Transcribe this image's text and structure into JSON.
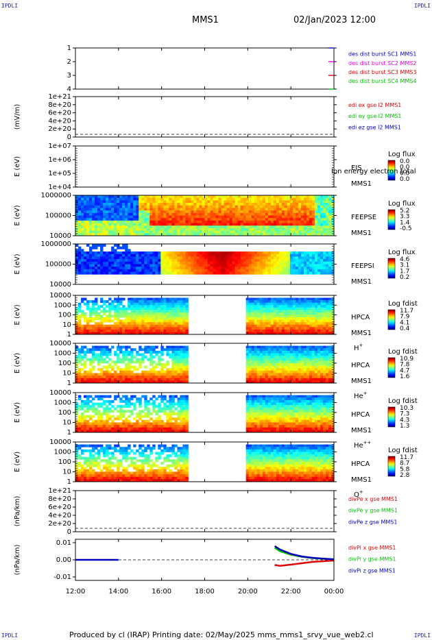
{
  "corner_label": "IPDLI",
  "header": {
    "spacecraft": "MMS1",
    "datetime": "02/Jan/2023 12:00"
  },
  "footer": "Produced by cl (IRAP)   Printing date: 02/May/2025   mms_mms1_srvy_vue_web2.cl",
  "x_ticks": [
    "12:00",
    "14:00",
    "16:00",
    "18:00",
    "20:00",
    "22:00",
    "00:00"
  ],
  "colors": {
    "red": "#e00000",
    "green": "#00c000",
    "blue": "#0000c0",
    "magenta": "#e000e0"
  },
  "chart_data": [
    {
      "type": "line",
      "title": "",
      "ylabel": "",
      "yticks": [
        "1",
        "2",
        "3",
        "4"
      ],
      "ylim": [
        1,
        4
      ],
      "legend": [
        {
          "text": "des dist burst SC1 MMS1",
          "color": "#0000c0"
        },
        {
          "text": "des dist burst SC2 MMS2",
          "color": "#e000e0"
        },
        {
          "text": "des dist burst SC3 MMS3",
          "color": "#e00000"
        },
        {
          "text": "des dist burst SC4 MMS4",
          "color": "#00c000"
        }
      ]
    },
    {
      "type": "line",
      "ylabel": "(mV/m)",
      "yticks": [
        "1e+21",
        "8e+20",
        "6e+20",
        "4e+20",
        "2e+20",
        "0"
      ],
      "legend": [
        {
          "text": "edi ex gse l2 MMS1",
          "color": "#e00000"
        },
        {
          "text": "edi ey gse l2 MMS1",
          "color": "#00c000"
        },
        {
          "text": "edi ez gse l2 MMS1",
          "color": "#0000c0"
        }
      ]
    },
    {
      "type": "heatmap",
      "ylabel": "E (eV)",
      "yscale": "log",
      "yticks": [
        "1e+07",
        "1e+06",
        "1e+05",
        "1e+04"
      ],
      "instrument": "EIS",
      "spacecraft": "MMS1",
      "overlay": "Ion energy electron total",
      "colorbar_title": "Log flux",
      "colorbar_ticks": [
        "0.0",
        "0.0",
        "0.0",
        "0.0"
      ]
    },
    {
      "type": "heatmap",
      "ylabel": "E (eV)",
      "yscale": "log",
      "yticks": [
        "1000000",
        "100000",
        "10000"
      ],
      "instrument": "FEEPSE",
      "spacecraft": "MMS1",
      "colorbar_title": "Log flux",
      "colorbar_ticks": [
        "5.2",
        "3.3",
        "1.4",
        "-0.5"
      ]
    },
    {
      "type": "heatmap",
      "ylabel": "E (eV)",
      "yscale": "log",
      "yticks": [
        "1000000",
        "100000",
        "10000"
      ],
      "instrument": "FEEPSI",
      "spacecraft": "MMS1",
      "colorbar_title": "Log flux",
      "colorbar_ticks": [
        "4.6",
        "3.1",
        "1.7",
        "0.2"
      ]
    },
    {
      "type": "heatmap",
      "ylabel": "E (eV)",
      "yscale": "log",
      "yticks": [
        "10000",
        "1000",
        "100",
        "10",
        "1"
      ],
      "instrument": "HPCA",
      "spacecraft": "MMS1",
      "species": "H",
      "charge": "+",
      "colorbar_title": "Log fdist",
      "colorbar_ticks": [
        "11.7",
        "7.9",
        "4.1",
        "0.4"
      ]
    },
    {
      "type": "heatmap",
      "ylabel": "E (eV)",
      "yscale": "log",
      "yticks": [
        "10000",
        "1000",
        "100",
        "10",
        "1"
      ],
      "instrument": "HPCA",
      "spacecraft": "MMS1",
      "species": "He",
      "charge": "+",
      "colorbar_title": "Log fdist",
      "colorbar_ticks": [
        "10.9",
        "7.8",
        "4.7",
        "1.6"
      ]
    },
    {
      "type": "heatmap",
      "ylabel": "E (eV)",
      "yscale": "log",
      "yticks": [
        "10000",
        "1000",
        "100",
        "10",
        "1"
      ],
      "instrument": "HPCA",
      "spacecraft": "MMS1",
      "species": "He",
      "charge": "++",
      "colorbar_title": "Log fdist",
      "colorbar_ticks": [
        "10.3",
        "7.3",
        "4.3",
        "1.3"
      ]
    },
    {
      "type": "heatmap",
      "ylabel": "E (eV)",
      "yscale": "log",
      "yticks": [
        "10000",
        "1000",
        "100",
        "10",
        "1"
      ],
      "instrument": "HPCA",
      "spacecraft": "MMS1",
      "species": "O",
      "charge": "+",
      "colorbar_title": "Log fdist",
      "colorbar_ticks": [
        "11.7",
        "8.7",
        "5.8",
        "2.8"
      ]
    },
    {
      "type": "line",
      "ylabel": "(nPa/km)",
      "yticks": [
        "1e+21",
        "8e+20",
        "6e+20",
        "4e+20",
        "2e+20",
        "0"
      ],
      "legend": [
        {
          "text": "divPe x gse MMS1",
          "color": "#e00000"
        },
        {
          "text": "divPe y gse MMS1",
          "color": "#00c000"
        },
        {
          "text": "divPe z gse MMS1",
          "color": "#0000c0"
        }
      ]
    },
    {
      "type": "line",
      "ylabel": "(nPa/km)",
      "yticks": [
        "0.01",
        "0.00",
        "-0.01"
      ],
      "ylim": [
        -0.012,
        0.012
      ],
      "legend": [
        {
          "text": "divPi x gse MMS1",
          "color": "#e00000"
        },
        {
          "text": "divPi y gse MMS1",
          "color": "#00c000"
        },
        {
          "text": "divPi z gse MMS1",
          "color": "#0000c0"
        }
      ],
      "series": [
        {
          "name": "divPi x gse MMS1",
          "x": [
            "21:15",
            "21:30",
            "22:00",
            "22:30",
            "23:00",
            "23:30",
            "00:00"
          ],
          "values": [
            -0.003,
            -0.0035,
            -0.0028,
            -0.002,
            -0.0012,
            -0.0008,
            -0.0004
          ]
        },
        {
          "name": "divPi y gse MMS1",
          "x": [
            "21:15",
            "21:30",
            "22:00",
            "22:30",
            "23:00",
            "23:30",
            "00:00"
          ],
          "values": [
            0.007,
            0.005,
            0.003,
            0.0018,
            0.001,
            0.0006,
            0.0003
          ]
        },
        {
          "name": "divPi z gse MMS1",
          "x": [
            "12:00",
            "13:00",
            "14:00",
            "21:15",
            "21:30",
            "22:00",
            "22:30",
            "23:00",
            "23:30",
            "00:00"
          ],
          "values": [
            0.0,
            0.0,
            0.0,
            0.008,
            0.006,
            0.0035,
            0.002,
            0.0012,
            0.0007,
            0.0003
          ]
        }
      ]
    }
  ]
}
